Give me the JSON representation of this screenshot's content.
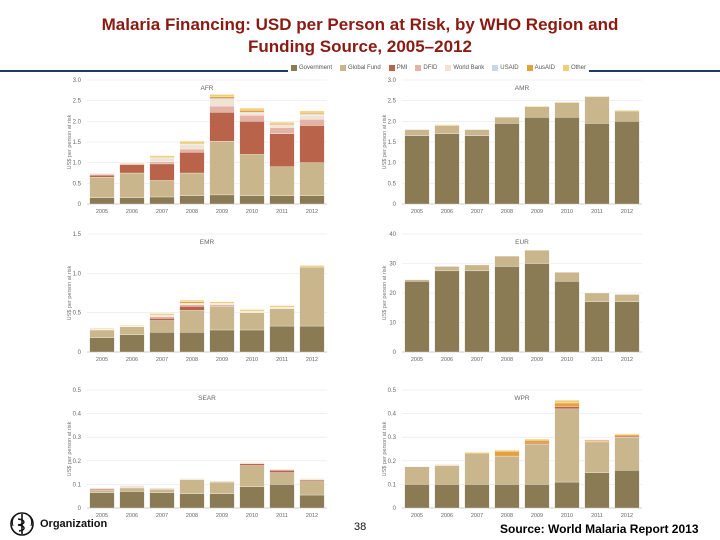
{
  "title_line1": "Malaria Financing:  USD per Person at Risk, by WHO Region and",
  "title_line2": "Funding Source, 2005–2012",
  "footer": {
    "org": "Organization",
    "page_number": "38",
    "source": "Source: World Malaria Report 2013"
  },
  "legend": [
    {
      "name": "Government",
      "color": "#8b7b55"
    },
    {
      "name": "Global Fund",
      "color": "#c9b68d"
    },
    {
      "name": "PMI",
      "color": "#b8634a"
    },
    {
      "name": "DFID",
      "color": "#e3b3a6"
    },
    {
      "name": "World Bank",
      "color": "#efe3d4"
    },
    {
      "name": "USAID",
      "color": "#cbd8e3"
    },
    {
      "name": "AusAID",
      "color": "#e6a13a"
    },
    {
      "name": "Other",
      "color": "#f0cf7a"
    }
  ],
  "chart_data": [
    {
      "type": "bar",
      "title": "AFR",
      "ylabel": "US$ per person at risk",
      "ylim": [
        0,
        3.0
      ],
      "yticks": [
        "0",
        "0.5",
        "1.0",
        "1.5",
        "2.0",
        "2.5",
        "3.0"
      ],
      "categories": [
        "2005",
        "2006",
        "2007",
        "2008",
        "2009",
        "2010",
        "2011",
        "2012"
      ],
      "series": [
        {
          "name": "Government",
          "values": [
            0.15,
            0.15,
            0.17,
            0.2,
            0.22,
            0.2,
            0.2,
            0.2
          ]
        },
        {
          "name": "Global Fund",
          "values": [
            0.5,
            0.6,
            0.4,
            0.55,
            1.3,
            1.0,
            0.7,
            0.8
          ]
        },
        {
          "name": "PMI",
          "values": [
            0.05,
            0.2,
            0.4,
            0.5,
            0.7,
            0.8,
            0.8,
            0.9
          ]
        },
        {
          "name": "DFID",
          "values": [
            0.02,
            0.03,
            0.05,
            0.08,
            0.15,
            0.15,
            0.15,
            0.15
          ]
        },
        {
          "name": "World Bank",
          "values": [
            0.02,
            0.02,
            0.08,
            0.1,
            0.15,
            0.05,
            0.05,
            0.1
          ]
        },
        {
          "name": "USAID",
          "values": [
            0.0,
            0.0,
            0.02,
            0.02,
            0.03,
            0.02,
            0.02,
            0.02
          ]
        },
        {
          "name": "AusAID",
          "values": [
            0.0,
            0.0,
            0.0,
            0.02,
            0.05,
            0.05,
            0.03,
            0.03
          ]
        },
        {
          "name": "Other",
          "values": [
            0.01,
            0.01,
            0.05,
            0.05,
            0.05,
            0.05,
            0.03,
            0.05
          ]
        }
      ]
    },
    {
      "type": "bar",
      "title": "AMR",
      "ylabel": "US$ per person at risk",
      "ylim": [
        0,
        3.0
      ],
      "yticks": [
        "0",
        "0.5",
        "1.0",
        "1.5",
        "2.0",
        "2.5",
        "3.0"
      ],
      "categories": [
        "2005",
        "2006",
        "2007",
        "2008",
        "2009",
        "2010",
        "2011",
        "2012"
      ],
      "series": [
        {
          "name": "Government",
          "values": [
            1.65,
            1.7,
            1.65,
            1.95,
            2.1,
            2.1,
            1.95,
            2.0
          ]
        },
        {
          "name": "Global Fund",
          "values": [
            0.15,
            0.2,
            0.15,
            0.15,
            0.25,
            0.35,
            0.65,
            0.25
          ]
        },
        {
          "name": "Other",
          "values": [
            0.0,
            0.02,
            0.0,
            0.0,
            0.02,
            0.02,
            0.0,
            0.02
          ]
        }
      ]
    },
    {
      "type": "bar",
      "title": "EMR",
      "ylabel": "US$ per person at risk",
      "ylim": [
        0,
        1.5
      ],
      "yticks": [
        "0",
        "0.5",
        "1.0",
        "1.5"
      ],
      "categories": [
        "2005",
        "2006",
        "2007",
        "2008",
        "2009",
        "2010",
        "2011",
        "2012"
      ],
      "series": [
        {
          "name": "Government",
          "values": [
            0.18,
            0.22,
            0.25,
            0.25,
            0.28,
            0.28,
            0.33,
            0.33
          ]
        },
        {
          "name": "Global Fund",
          "values": [
            0.1,
            0.1,
            0.15,
            0.28,
            0.3,
            0.22,
            0.22,
            0.75
          ]
        },
        {
          "name": "PMI",
          "values": [
            0.0,
            0.0,
            0.03,
            0.05,
            0.0,
            0.0,
            0.0,
            0.0
          ]
        },
        {
          "name": "DFID",
          "values": [
            0.0,
            0.0,
            0.02,
            0.02,
            0.02,
            0.0,
            0.0,
            0.0
          ]
        },
        {
          "name": "World Bank",
          "values": [
            0.01,
            0.01,
            0.02,
            0.02,
            0.02,
            0.02,
            0.02,
            0.0
          ]
        },
        {
          "name": "AusAID",
          "values": [
            0.0,
            0.0,
            0.0,
            0.02,
            0.0,
            0.0,
            0.0,
            0.0
          ]
        },
        {
          "name": "Other",
          "values": [
            0.01,
            0.01,
            0.02,
            0.02,
            0.02,
            0.02,
            0.02,
            0.02
          ]
        }
      ]
    },
    {
      "type": "bar",
      "title": "EUR",
      "ylabel": "US$ per person at risk",
      "ylim": [
        0,
        40
      ],
      "yticks": [
        "0",
        "10",
        "20",
        "30",
        "40"
      ],
      "categories": [
        "2005",
        "2006",
        "2007",
        "2008",
        "2009",
        "2010",
        "2011",
        "2012"
      ],
      "series": [
        {
          "name": "Government",
          "values": [
            24,
            27.5,
            27.5,
            29,
            30,
            24,
            17,
            17
          ]
        },
        {
          "name": "Global Fund",
          "values": [
            0.5,
            1.5,
            2,
            3.5,
            4.5,
            3,
            3,
            2.5
          ]
        }
      ]
    },
    {
      "type": "bar",
      "title": "SEAR",
      "ylabel": "US$ per person at risk",
      "ylim": [
        0,
        0.5
      ],
      "yticks": [
        "0",
        "0.1",
        "0.2",
        "0.3",
        "0.4",
        "0.5"
      ],
      "categories": [
        "2005",
        "2006",
        "2007",
        "2008",
        "2009",
        "2010",
        "2011",
        "2012"
      ],
      "series": [
        {
          "name": "Government",
          "values": [
            0.065,
            0.07,
            0.065,
            0.06,
            0.06,
            0.09,
            0.1,
            0.055
          ]
        },
        {
          "name": "Global Fund",
          "values": [
            0.01,
            0.015,
            0.015,
            0.06,
            0.05,
            0.09,
            0.05,
            0.06
          ]
        },
        {
          "name": "PMI",
          "values": [
            0.005,
            0.0,
            0.0,
            0.0,
            0.0,
            0.008,
            0.01,
            0.005
          ]
        },
        {
          "name": "World Bank",
          "values": [
            0.005,
            0.01,
            0.005,
            0.005,
            0.005,
            0.005,
            0.005,
            0.005
          ]
        }
      ]
    },
    {
      "type": "bar",
      "title": "WPR",
      "ylabel": "US$ per person at risk",
      "ylim": [
        0,
        0.5
      ],
      "yticks": [
        "0",
        "0.1",
        "0.2",
        "0.3",
        "0.4",
        "0.5"
      ],
      "categories": [
        "2005",
        "2006",
        "2007",
        "2008",
        "2009",
        "2010",
        "2011",
        "2012"
      ],
      "series": [
        {
          "name": "Government",
          "values": [
            0.1,
            0.1,
            0.1,
            0.1,
            0.1,
            0.11,
            0.15,
            0.16
          ]
        },
        {
          "name": "Global Fund",
          "values": [
            0.075,
            0.08,
            0.13,
            0.12,
            0.17,
            0.31,
            0.13,
            0.14
          ]
        },
        {
          "name": "PMI",
          "values": [
            0.0,
            0.0,
            0.0,
            0.0,
            0.005,
            0.01,
            0.003,
            0.005
          ]
        },
        {
          "name": "World Bank",
          "values": [
            0.0,
            0.005,
            0.0,
            0.0,
            0.0,
            0.0,
            0.0,
            0.0
          ]
        },
        {
          "name": "AusAID",
          "values": [
            0.0,
            0.0,
            0.005,
            0.02,
            0.012,
            0.015,
            0.005,
            0.005
          ]
        },
        {
          "name": "Other",
          "values": [
            0.0,
            0.0,
            0.002,
            0.005,
            0.005,
            0.012,
            0.002,
            0.005
          ]
        }
      ]
    }
  ]
}
